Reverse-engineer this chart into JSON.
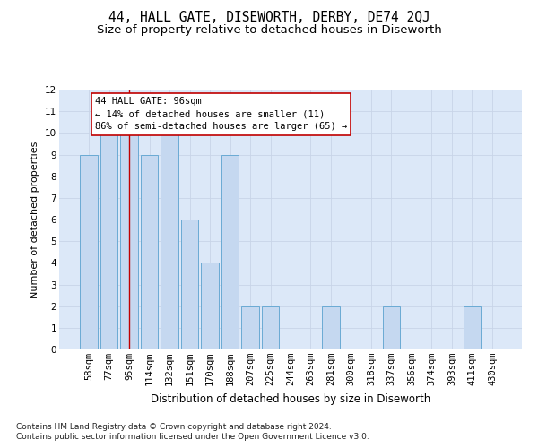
{
  "title": "44, HALL GATE, DISEWORTH, DERBY, DE74 2QJ",
  "subtitle": "Size of property relative to detached houses in Diseworth",
  "xlabel": "Distribution of detached houses by size in Diseworth",
  "ylabel": "Number of detached properties",
  "footer_line1": "Contains HM Land Registry data © Crown copyright and database right 2024.",
  "footer_line2": "Contains public sector information licensed under the Open Government Licence v3.0.",
  "categories": [
    "58sqm",
    "77sqm",
    "95sqm",
    "114sqm",
    "132sqm",
    "151sqm",
    "170sqm",
    "188sqm",
    "207sqm",
    "225sqm",
    "244sqm",
    "263sqm",
    "281sqm",
    "300sqm",
    "318sqm",
    "337sqm",
    "356sqm",
    "374sqm",
    "393sqm",
    "411sqm",
    "430sqm"
  ],
  "values": [
    9,
    10,
    10,
    9,
    10,
    6,
    4,
    9,
    2,
    2,
    0,
    0,
    2,
    0,
    0,
    2,
    0,
    0,
    0,
    2,
    0
  ],
  "bar_color": "#c5d8f0",
  "bar_edge_color": "#6aaad4",
  "property_line_index": 2,
  "property_line_color": "#c00000",
  "annotation_text": "44 HALL GATE: 96sqm\n← 14% of detached houses are smaller (11)\n86% of semi-detached houses are larger (65) →",
  "annotation_box_color": "#ffffff",
  "annotation_box_edge_color": "#c00000",
  "ylim": [
    0,
    12
  ],
  "yticks": [
    0,
    1,
    2,
    3,
    4,
    5,
    6,
    7,
    8,
    9,
    10,
    11,
    12
  ],
  "grid_color": "#c8d4e8",
  "plot_bg_color": "#dce8f8",
  "title_fontsize": 10.5,
  "subtitle_fontsize": 9.5,
  "xlabel_fontsize": 8.5,
  "ylabel_fontsize": 8,
  "tick_fontsize": 7.5,
  "annotation_fontsize": 7.5,
  "footer_fontsize": 6.5
}
